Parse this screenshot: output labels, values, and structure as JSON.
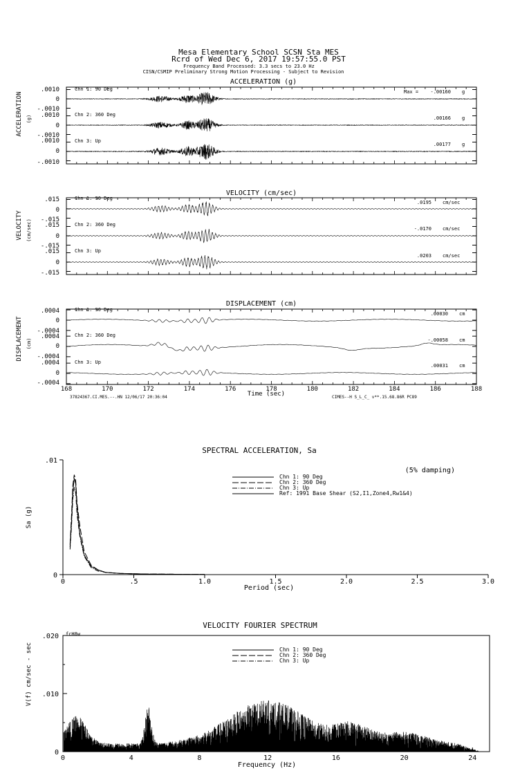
{
  "header": {
    "title": "Mesa Elementary School    SCSN Sta MES",
    "record": "Rcrd of Wed Dec  6, 2017 19:57:55.0 PST",
    "band": "Frequency Band Processed: 3.3 secs to 23.0 Hz",
    "note": "CISN/CSMIP Preliminary Strong Motion Processing - Subject to Revision"
  },
  "chart_data": [
    {
      "type": "line",
      "title": "ACCELERATION (g)",
      "ylabel": "ACCELERATION",
      "yunit": "(g)",
      "ylim": [
        -0.001,
        0.001
      ],
      "ytick_labels": [
        ".0010",
        "0",
        "-.0010"
      ],
      "xlim": [
        168,
        188
      ],
      "max_label": "Max =",
      "series": [
        {
          "name": "Chn 1: 90 Deg",
          "peak": "-.00160",
          "unit": "g"
        },
        {
          "name": "Chn 2: 360 Deg",
          "peak": ".00166",
          "unit": "g"
        },
        {
          "name": "Chn 3: Up",
          "peak": ".00177",
          "unit": "g"
        }
      ]
    },
    {
      "type": "line",
      "title": "VELOCITY (cm/sec)",
      "ylabel": "VELOCITY",
      "yunit": "(cm/sec)",
      "ylim": [
        -0.015,
        0.015
      ],
      "ytick_labels": [
        ".015",
        "0",
        "-.015"
      ],
      "xlim": [
        168,
        188
      ],
      "series": [
        {
          "name": "Chn 1: 90 Deg",
          "peak": ".0195",
          "unit": "cm/sec"
        },
        {
          "name": "Chn 2: 360 Deg",
          "peak": "-.0170",
          "unit": "cm/sec"
        },
        {
          "name": "Chn 3: Up",
          "peak": ".0203",
          "unit": "cm/sec"
        }
      ]
    },
    {
      "type": "line",
      "title": "DISPLACEMENT (cm)",
      "ylabel": "DISPLACEMENT",
      "yunit": "(cm)",
      "ylim": [
        -0.0004,
        0.0004
      ],
      "ytick_labels": [
        ".0004",
        "0",
        "-.0004"
      ],
      "xlim": [
        168,
        188
      ],
      "xlabel": "Time (sec)",
      "xticks": [
        "168",
        "170",
        "172",
        "174",
        "176",
        "178",
        "180",
        "182",
        "184",
        "186",
        "188"
      ],
      "footer_left": "37824367.CI.MES.--.HN 12/06/17 20:36:04",
      "footer_right": "CIMES--H  S_L_C_  v**.15.68.86R PC89",
      "series": [
        {
          "name": "Chn 1: 90 Deg",
          "peak": ".00030",
          "unit": "cm"
        },
        {
          "name": "Chn 2: 360 Deg",
          "peak": "-.00058",
          "unit": "cm"
        },
        {
          "name": "Chn 3: Up",
          "peak": ".00031",
          "unit": "cm"
        }
      ]
    },
    {
      "type": "line",
      "title": "SPECTRAL ACCELERATION, Sa",
      "xlabel": "Period (sec)",
      "ylabel": "Sa (g)",
      "xlim": [
        0,
        3.0
      ],
      "ylim": [
        0,
        0.01
      ],
      "xticks": [
        "0",
        ".5",
        "1.0",
        "1.5",
        "2.0",
        "2.5",
        "3.0"
      ],
      "yticks": [
        ".01",
        "0"
      ],
      "annotation": "(5% damping)",
      "series": [
        {
          "name": "Chn 1: 90 Deg",
          "x": [
            0.05,
            0.06,
            0.07,
            0.08,
            0.09,
            0.1,
            0.12,
            0.15,
            0.2,
            0.25,
            0.3,
            0.4,
            0.6,
            1.0
          ],
          "y": [
            0.0024,
            0.0045,
            0.0072,
            0.0084,
            0.0079,
            0.0058,
            0.0035,
            0.0017,
            0.0007,
            0.0004,
            0.0002,
            0.0001,
            5e-05,
            2e-05
          ]
        },
        {
          "name": "Chn 2: 360 Deg",
          "x": [
            0.05,
            0.06,
            0.07,
            0.08,
            0.09,
            0.1,
            0.12,
            0.15,
            0.2,
            0.25,
            0.3,
            0.4,
            0.6,
            1.0
          ],
          "y": [
            0.0026,
            0.005,
            0.0078,
            0.0087,
            0.0082,
            0.0062,
            0.0042,
            0.002,
            0.0008,
            0.0004,
            0.0002,
            0.0001,
            5e-05,
            2e-05
          ]
        },
        {
          "name": "Chn 3: Up",
          "x": [
            0.05,
            0.06,
            0.07,
            0.08,
            0.09,
            0.1,
            0.12,
            0.15,
            0.2,
            0.25,
            0.3,
            0.4,
            0.6,
            1.0
          ],
          "y": [
            0.0022,
            0.0041,
            0.0066,
            0.0076,
            0.0071,
            0.0052,
            0.0033,
            0.0016,
            0.0006,
            0.0003,
            0.0002,
            0.0001,
            5e-05,
            2e-05
          ]
        },
        {
          "name": "Ref: 1991 Base Shear (S2,I1,Zone4,Rw1&4)"
        }
      ]
    },
    {
      "type": "line",
      "title": "VELOCITY FOURIER SPECTRUM",
      "xlabel": "Frequency (Hz)",
      "ylabel": "V(f)   cm/sec - sec",
      "xlim": [
        0,
        25
      ],
      "ylim": [
        0,
        0.02
      ],
      "xticks": [
        "0",
        "4",
        "8",
        "12",
        "16",
        "20",
        "24"
      ],
      "yticks": [
        ".020",
        ".010",
        "0"
      ],
      "corner_label": "fcH8w",
      "series": [
        {
          "name": "Chn 1: 90 Deg"
        },
        {
          "name": "Chn 2: 360 Deg"
        },
        {
          "name": "Chn 3: Up"
        }
      ]
    }
  ],
  "colors": {
    "ink": "#000000",
    "paper": "#ffffff"
  }
}
